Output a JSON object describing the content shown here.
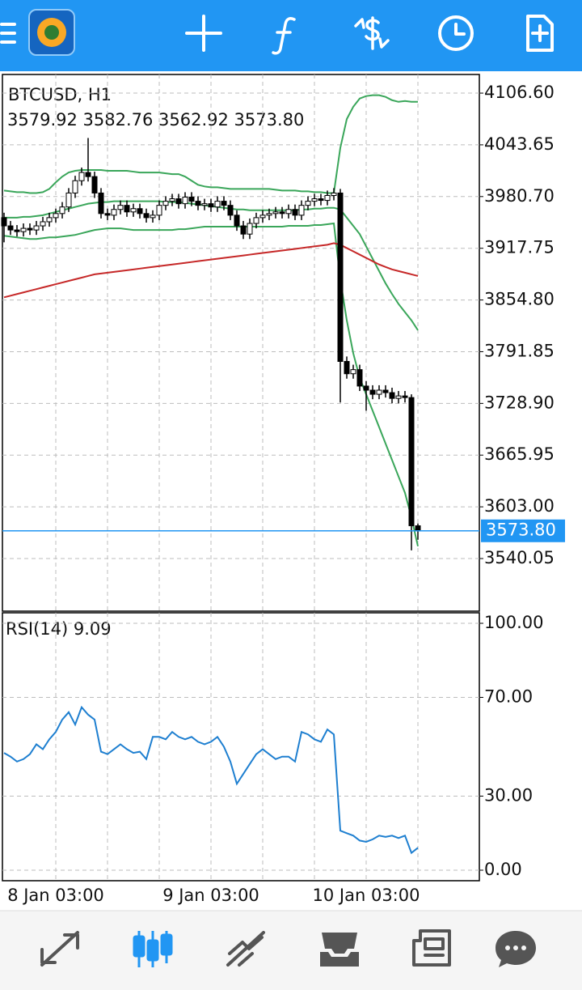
{
  "chart_data": [
    {
      "type": "candlestick",
      "title": "BTCUSD, H1",
      "subtitle": "3579.92 3582.76 3562.92 3573.80",
      "categories": [
        null,
        null,
        null,
        null,
        null,
        null,
        null,
        null,
        "8 Jan 03:00",
        null,
        null,
        null,
        null,
        null,
        null,
        null,
        null,
        null,
        null,
        null,
        null,
        null,
        null,
        null,
        null,
        null,
        null,
        null,
        null,
        null,
        null,
        null,
        "9 Jan 03:00",
        null,
        null,
        null,
        null,
        null,
        null,
        null,
        null,
        null,
        null,
        null,
        null,
        null,
        null,
        null,
        null,
        null,
        null,
        null,
        null,
        null,
        null,
        null,
        "10 Jan 03:00",
        null,
        null,
        null,
        null,
        null,
        null,
        null,
        null
      ],
      "open": [
        3955,
        3945,
        3940,
        3938,
        3942,
        3940,
        3945,
        3950,
        3955,
        3960,
        3968,
        3985,
        4000,
        4010,
        4005,
        3985,
        3960,
        3958,
        3965,
        3970,
        3962,
        3966,
        3960,
        3955,
        3958,
        3970,
        3975,
        3978,
        3972,
        3980,
        3975,
        3970,
        3972,
        3968,
        3975,
        3970,
        3958,
        3945,
        3935,
        3948,
        3955,
        3958,
        3960,
        3962,
        3960,
        3965,
        3958,
        3970,
        3975,
        3978,
        3976,
        3982,
        3985,
        3780,
        3765,
        3770,
        3750,
        3745,
        3740,
        3745,
        3742,
        3735,
        3738,
        3736,
        3579.92
      ],
      "high": [
        3961,
        3951,
        3946,
        3948,
        3948,
        3951,
        3956,
        3961,
        3966,
        3974,
        3991,
        4006,
        4016,
        4052,
        4011,
        3991,
        3966,
        3971,
        3976,
        3976,
        3972,
        3972,
        3966,
        3964,
        3976,
        3981,
        3984,
        3984,
        3986,
        3986,
        3981,
        3978,
        3978,
        3981,
        3981,
        3976,
        3964,
        3951,
        3954,
        3961,
        3964,
        3966,
        3968,
        3968,
        3971,
        3971,
        3976,
        3981,
        3984,
        3984,
        3988,
        3991,
        3990,
        3786,
        3776,
        3776,
        3756,
        3751,
        3751,
        3751,
        3748,
        3744,
        3744,
        3740,
        3582.76
      ],
      "low": [
        3925,
        3934,
        3932,
        3932,
        3934,
        3934,
        3939,
        3944,
        3949,
        3954,
        3962,
        3979,
        3994,
        3999,
        3979,
        3954,
        3952,
        3952,
        3959,
        3956,
        3956,
        3954,
        3949,
        3949,
        3952,
        3964,
        3969,
        3966,
        3966,
        3969,
        3964,
        3964,
        3962,
        3962,
        3964,
        3952,
        3939,
        3929,
        3929,
        3942,
        3949,
        3952,
        3954,
        3954,
        3954,
        3952,
        3952,
        3964,
        3969,
        3970,
        3970,
        3976,
        3730,
        3759,
        3759,
        3744,
        3720,
        3734,
        3734,
        3736,
        3729,
        3729,
        3730,
        3550,
        3562.92
      ],
      "close": [
        3945,
        3940,
        3938,
        3942,
        3940,
        3945,
        3950,
        3955,
        3960,
        3968,
        3985,
        4000,
        4010,
        4005,
        3985,
        3960,
        3958,
        3965,
        3970,
        3962,
        3966,
        3960,
        3955,
        3958,
        3970,
        3975,
        3978,
        3972,
        3980,
        3975,
        3970,
        3972,
        3968,
        3975,
        3970,
        3958,
        3945,
        3935,
        3948,
        3955,
        3958,
        3960,
        3962,
        3960,
        3965,
        3958,
        3970,
        3975,
        3978,
        3976,
        3982,
        3985,
        3780,
        3765,
        3770,
        3750,
        3745,
        3740,
        3745,
        3742,
        3735,
        3738,
        3736,
        3580,
        3573.8
      ],
      "bull_color": "#ffffff",
      "bear_color": "#000000",
      "series": [
        {
          "color": "#3aa65a",
          "values": [
            3988,
            3987,
            3986,
            3986,
            3985,
            3985,
            3986,
            3990,
            3998,
            4005,
            4010,
            4012,
            4013,
            4013,
            4013,
            4013,
            4012,
            4012,
            4012,
            4012,
            4011,
            4010,
            4010,
            4010,
            4010,
            4009,
            4008,
            4008,
            4005,
            4000,
            3995,
            3993,
            3992,
            3992,
            3991,
            3990,
            3990,
            3990,
            3990,
            3990,
            3990,
            3990,
            3989,
            3988,
            3988,
            3988,
            3987,
            3987,
            3986,
            3986,
            3985,
            3985,
            4040,
            4075,
            4090,
            4100,
            4103,
            4104,
            4104,
            4102,
            4098,
            4096,
            4097,
            4096,
            4096
          ]
        },
        {
          "color": "#3aa65a",
          "values": [
            3955,
            3955,
            3955,
            3956,
            3956,
            3957,
            3958,
            3960,
            3962,
            3964,
            3966,
            3968,
            3970,
            3972,
            3973,
            3974,
            3974,
            3975,
            3975,
            3975,
            3975,
            3975,
            3975,
            3975,
            3975,
            3974,
            3974,
            3974,
            3973,
            3972,
            3971,
            3970,
            3969,
            3968,
            3967,
            3966,
            3965,
            3965,
            3964,
            3964,
            3964,
            3964,
            3964,
            3964,
            3964,
            3964,
            3965,
            3965,
            3966,
            3966,
            3967,
            3967,
            3965,
            3955,
            3945,
            3935,
            3920,
            3905,
            3890,
            3875,
            3862,
            3850,
            3840,
            3830,
            3818
          ]
        },
        {
          "color": "#3aa65a",
          "values": [
            3933,
            3932,
            3931,
            3930,
            3929,
            3929,
            3930,
            3931,
            3931,
            3932,
            3933,
            3934,
            3936,
            3938,
            3940,
            3941,
            3942,
            3942,
            3942,
            3941,
            3940,
            3940,
            3940,
            3940,
            3940,
            3940,
            3940,
            3941,
            3941,
            3942,
            3943,
            3944,
            3944,
            3944,
            3944,
            3944,
            3944,
            3944,
            3944,
            3944,
            3944,
            3944,
            3944,
            3944,
            3945,
            3945,
            3945,
            3945,
            3946,
            3946,
            3947,
            3948,
            3880,
            3830,
            3790,
            3760,
            3740,
            3720,
            3700,
            3680,
            3660,
            3640,
            3620,
            3590,
            3555
          ]
        },
        {
          "color": "#c62828",
          "values": [
            3858,
            3860,
            3862,
            3864,
            3866,
            3868,
            3870,
            3872,
            3874,
            3876,
            3878,
            3880,
            3882,
            3884,
            3886,
            3887,
            3888,
            3889,
            3890,
            3891,
            3892,
            3893,
            3894,
            3895,
            3896,
            3897,
            3898,
            3899,
            3900,
            3901,
            3902,
            3903,
            3904,
            3905,
            3906,
            3907,
            3908,
            3909,
            3910,
            3911,
            3912,
            3913,
            3914,
            3915,
            3916,
            3917,
            3918,
            3919,
            3920,
            3921,
            3922,
            3924,
            3922,
            3918,
            3914,
            3910,
            3906,
            3902,
            3898,
            3895,
            3892,
            3890,
            3888,
            3886,
            3884
          ]
        }
      ],
      "price_line": {
        "value": 3573.8,
        "label": "3573.80",
        "color": "#2196f3"
      },
      "ylim": [
        3476,
        4129.3
      ],
      "yticks": [
        {
          "value": 4106.6,
          "label": "4106.60"
        },
        4043.65,
        {
          "value": 3980.7,
          "label": "3980.70"
        },
        3917.75,
        {
          "value": 3854.8,
          "label": "3854.80"
        },
        3791.85,
        {
          "value": 3728.9,
          "label": "3728.90"
        },
        3665.95,
        {
          "value": 3603,
          "label": "3603.00"
        },
        3540.05
      ],
      "grid": true
    },
    {
      "type": "line",
      "title": "RSI(14) 9.09",
      "color": "#1e7fd0",
      "values": [
        47.5,
        46,
        44,
        45,
        47,
        51,
        49,
        53,
        56,
        61,
        64,
        59,
        66,
        63,
        61,
        48,
        47,
        49,
        51,
        49,
        47.5,
        48,
        45,
        54,
        54,
        53,
        56,
        54,
        53,
        54,
        52,
        51,
        52,
        54,
        50,
        44,
        35,
        39,
        43,
        47,
        49,
        47,
        45,
        46,
        46,
        44,
        56,
        55,
        53,
        52,
        57,
        55,
        16,
        15,
        14,
        12,
        11.5,
        12.5,
        14,
        13.5,
        14,
        13,
        14,
        7,
        9.09
      ],
      "ylim": [
        -4.26,
        104.26
      ],
      "yticks": [
        {
          "value": 100,
          "label": "100.00"
        },
        {
          "value": 70,
          "label": "70.00"
        },
        {
          "value": 30,
          "label": "30.00"
        },
        {
          "value": 0,
          "label": "0.00"
        }
      ],
      "grid": true
    }
  ]
}
